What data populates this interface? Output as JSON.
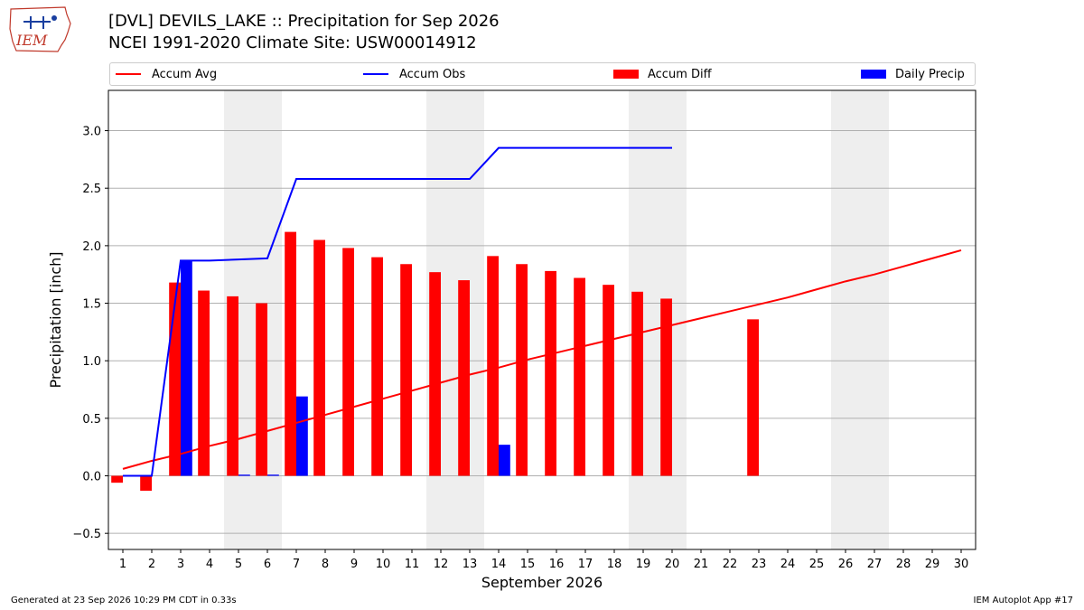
{
  "header": {
    "logo_text": "IEM",
    "title_line1": "[DVL] DEVILS_LAKE :: Precipitation for Sep 2026",
    "title_line2": "NCEI 1991-2020 Climate Site: USW00014912"
  },
  "footer": {
    "left": "Generated at 23 Sep 2026 10:29 PM CDT in 0.33s",
    "right": "IEM Autoplot App #17"
  },
  "colors": {
    "accum_avg": "#ff0000",
    "accum_obs": "#0000ff",
    "accum_diff": "#ff0000",
    "daily_precip": "#0000ff",
    "weekend_shade": "#eeeeee"
  },
  "chart_data": {
    "type": "bar",
    "xlabel": "September 2026",
    "ylabel": "Precipitation [inch]",
    "ylim": [
      -0.64,
      3.35
    ],
    "xlim": [
      0.5,
      30.5
    ],
    "yticks": [
      "−0.5",
      "0.0",
      "0.5",
      "1.0",
      "1.5",
      "2.0",
      "2.5",
      "3.0"
    ],
    "ytick_values": [
      -0.5,
      0.0,
      0.5,
      1.0,
      1.5,
      2.0,
      2.5,
      3.0
    ],
    "days": [
      1,
      2,
      3,
      4,
      5,
      6,
      7,
      8,
      9,
      10,
      11,
      12,
      13,
      14,
      15,
      16,
      17,
      18,
      19,
      20,
      21,
      22,
      23,
      24,
      25,
      26,
      27,
      28,
      29,
      30
    ],
    "xtick_labels": [
      "1",
      "2",
      "3",
      "4",
      "5",
      "6",
      "7",
      "8",
      "9",
      "10",
      "11",
      "12",
      "13",
      "14",
      "15",
      "16",
      "17",
      "18",
      "19",
      "20",
      "21",
      "22",
      "23",
      "24",
      "25",
      "26",
      "27",
      "28",
      "29",
      "30"
    ],
    "weekend_days": [
      5,
      6,
      12,
      13,
      19,
      20,
      26,
      27
    ],
    "grid": "horizontal",
    "legend_placement": "top",
    "legend": [
      "Accum Avg",
      "Accum Obs",
      "Accum Diff",
      "Daily Precip"
    ],
    "series": [
      {
        "name": "Accum Avg",
        "type": "line",
        "x": [
          1,
          2,
          3,
          4,
          5,
          6,
          7,
          8,
          9,
          10,
          11,
          12,
          13,
          14,
          15,
          16,
          17,
          18,
          19,
          20,
          21,
          22,
          23,
          24,
          25,
          26,
          27,
          28,
          29,
          30
        ],
        "values": [
          0.06,
          0.13,
          0.19,
          0.26,
          0.32,
          0.39,
          0.46,
          0.53,
          0.6,
          0.67,
          0.74,
          0.81,
          0.88,
          0.94,
          1.01,
          1.07,
          1.13,
          1.19,
          1.25,
          1.31,
          1.37,
          1.43,
          1.49,
          1.55,
          1.62,
          1.69,
          1.75,
          1.82,
          1.89,
          1.96
        ]
      },
      {
        "name": "Accum Obs",
        "type": "line",
        "x": [
          1,
          2,
          3,
          4,
          5,
          6,
          7,
          8,
          9,
          10,
          11,
          12,
          13,
          14,
          15,
          16,
          17,
          18,
          19,
          20
        ],
        "values": [
          0.0,
          0.0,
          1.87,
          1.87,
          1.88,
          1.89,
          2.58,
          2.58,
          2.58,
          2.58,
          2.58,
          2.58,
          2.58,
          2.85,
          2.85,
          2.85,
          2.85,
          2.85,
          2.85,
          2.85
        ]
      },
      {
        "name": "Accum Diff",
        "type": "bar",
        "x": [
          1,
          2,
          3,
          4,
          5,
          6,
          7,
          8,
          9,
          10,
          11,
          12,
          13,
          14,
          15,
          16,
          17,
          18,
          19,
          20,
          23
        ],
        "values": [
          -0.06,
          -0.13,
          1.68,
          1.61,
          1.56,
          1.5,
          2.12,
          2.05,
          1.98,
          1.9,
          1.84,
          1.77,
          1.7,
          1.91,
          1.84,
          1.78,
          1.72,
          1.66,
          1.6,
          1.54,
          1.36
        ]
      },
      {
        "name": "Daily Precip",
        "type": "bar",
        "x": [
          1,
          2,
          3,
          4,
          5,
          6,
          7,
          8,
          9,
          10,
          11,
          12,
          13,
          14,
          15,
          16,
          17,
          18,
          19,
          20
        ],
        "values": [
          0.0,
          0.0,
          1.87,
          0.0,
          0.01,
          0.01,
          0.69,
          0.0,
          0.0,
          0.0,
          0.0,
          0.0,
          0.0,
          0.27,
          0.0,
          0.0,
          0.0,
          0.0,
          0.0,
          0.0
        ]
      }
    ]
  }
}
